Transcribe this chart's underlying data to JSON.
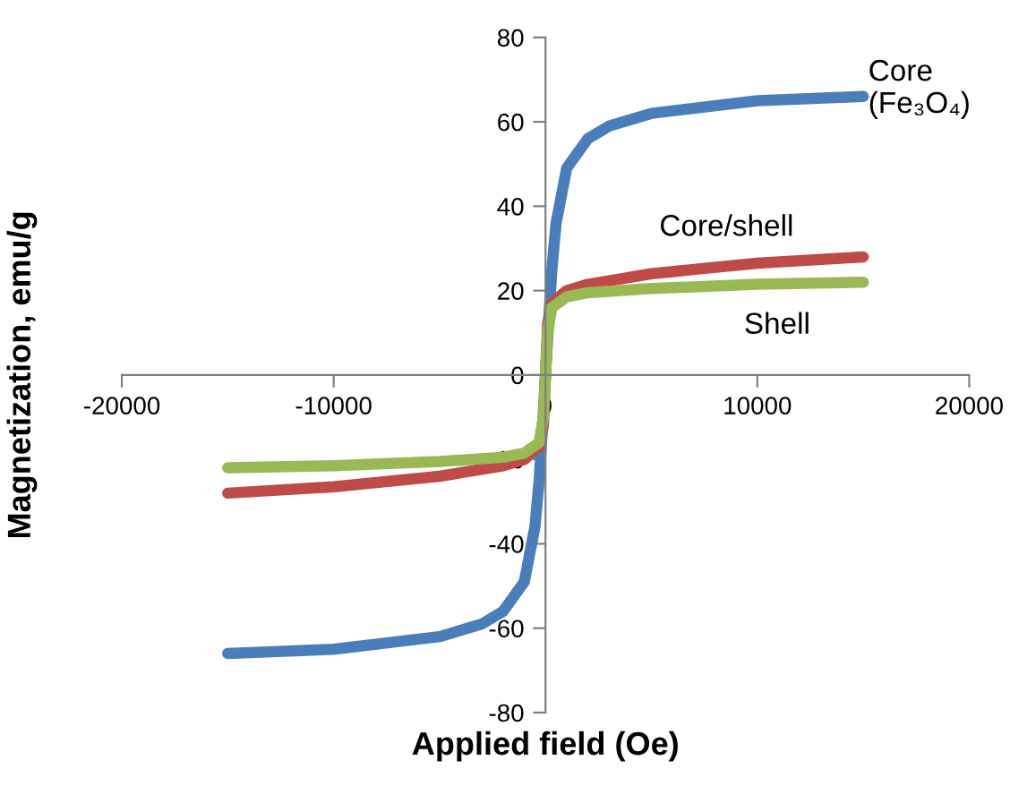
{
  "chart_data": {
    "type": "line",
    "xlabel": "Applied field (Oe)",
    "ylabel": "Magnetization, emu/g",
    "xlim": [
      -20000,
      20000
    ],
    "ylim": [
      -80,
      80
    ],
    "xticks": [
      -20000,
      -10000,
      0,
      10000,
      20000
    ],
    "yticks": [
      -80,
      -60,
      -40,
      -20,
      0,
      20,
      40,
      60,
      80
    ],
    "grid": false,
    "legend": false,
    "marker": "none",
    "line_style": "solid",
    "series": [
      {
        "name": "Core\n(Fe₃O₄)",
        "color": "#4a7ebb",
        "x": [
          -15000,
          -10000,
          -5000,
          -3000,
          -2000,
          -1000,
          -500,
          -300,
          -150,
          0,
          150,
          300,
          500,
          1000,
          2000,
          3000,
          5000,
          10000,
          15000
        ],
        "values": [
          -66,
          -65,
          -62,
          -59,
          -56,
          -49,
          -36,
          -25,
          -13,
          0,
          13,
          25,
          36,
          49,
          56,
          59,
          62,
          65,
          66
        ]
      },
      {
        "name": "Core/shell",
        "color": "#be4b48",
        "x": [
          -15000,
          -10000,
          -5000,
          -2000,
          -1000,
          -300,
          -100,
          0,
          100,
          300,
          1000,
          2000,
          5000,
          10000,
          15000
        ],
        "values": [
          -28,
          -26.5,
          -24,
          -21.5,
          -20,
          -17,
          -12,
          0,
          12,
          17,
          20,
          21.5,
          24,
          26.5,
          28
        ]
      },
      {
        "name": "Shell",
        "color": "#98b954",
        "x": [
          -15000,
          -10000,
          -5000,
          -2000,
          -1000,
          -300,
          -100,
          0,
          100,
          300,
          1000,
          2000,
          5000,
          10000,
          15000
        ],
        "values": [
          -22,
          -21.5,
          -20.5,
          -19.5,
          -18.5,
          -16,
          -10,
          0,
          10,
          16,
          18.5,
          19.5,
          20.5,
          21.5,
          22
        ]
      }
    ]
  }
}
